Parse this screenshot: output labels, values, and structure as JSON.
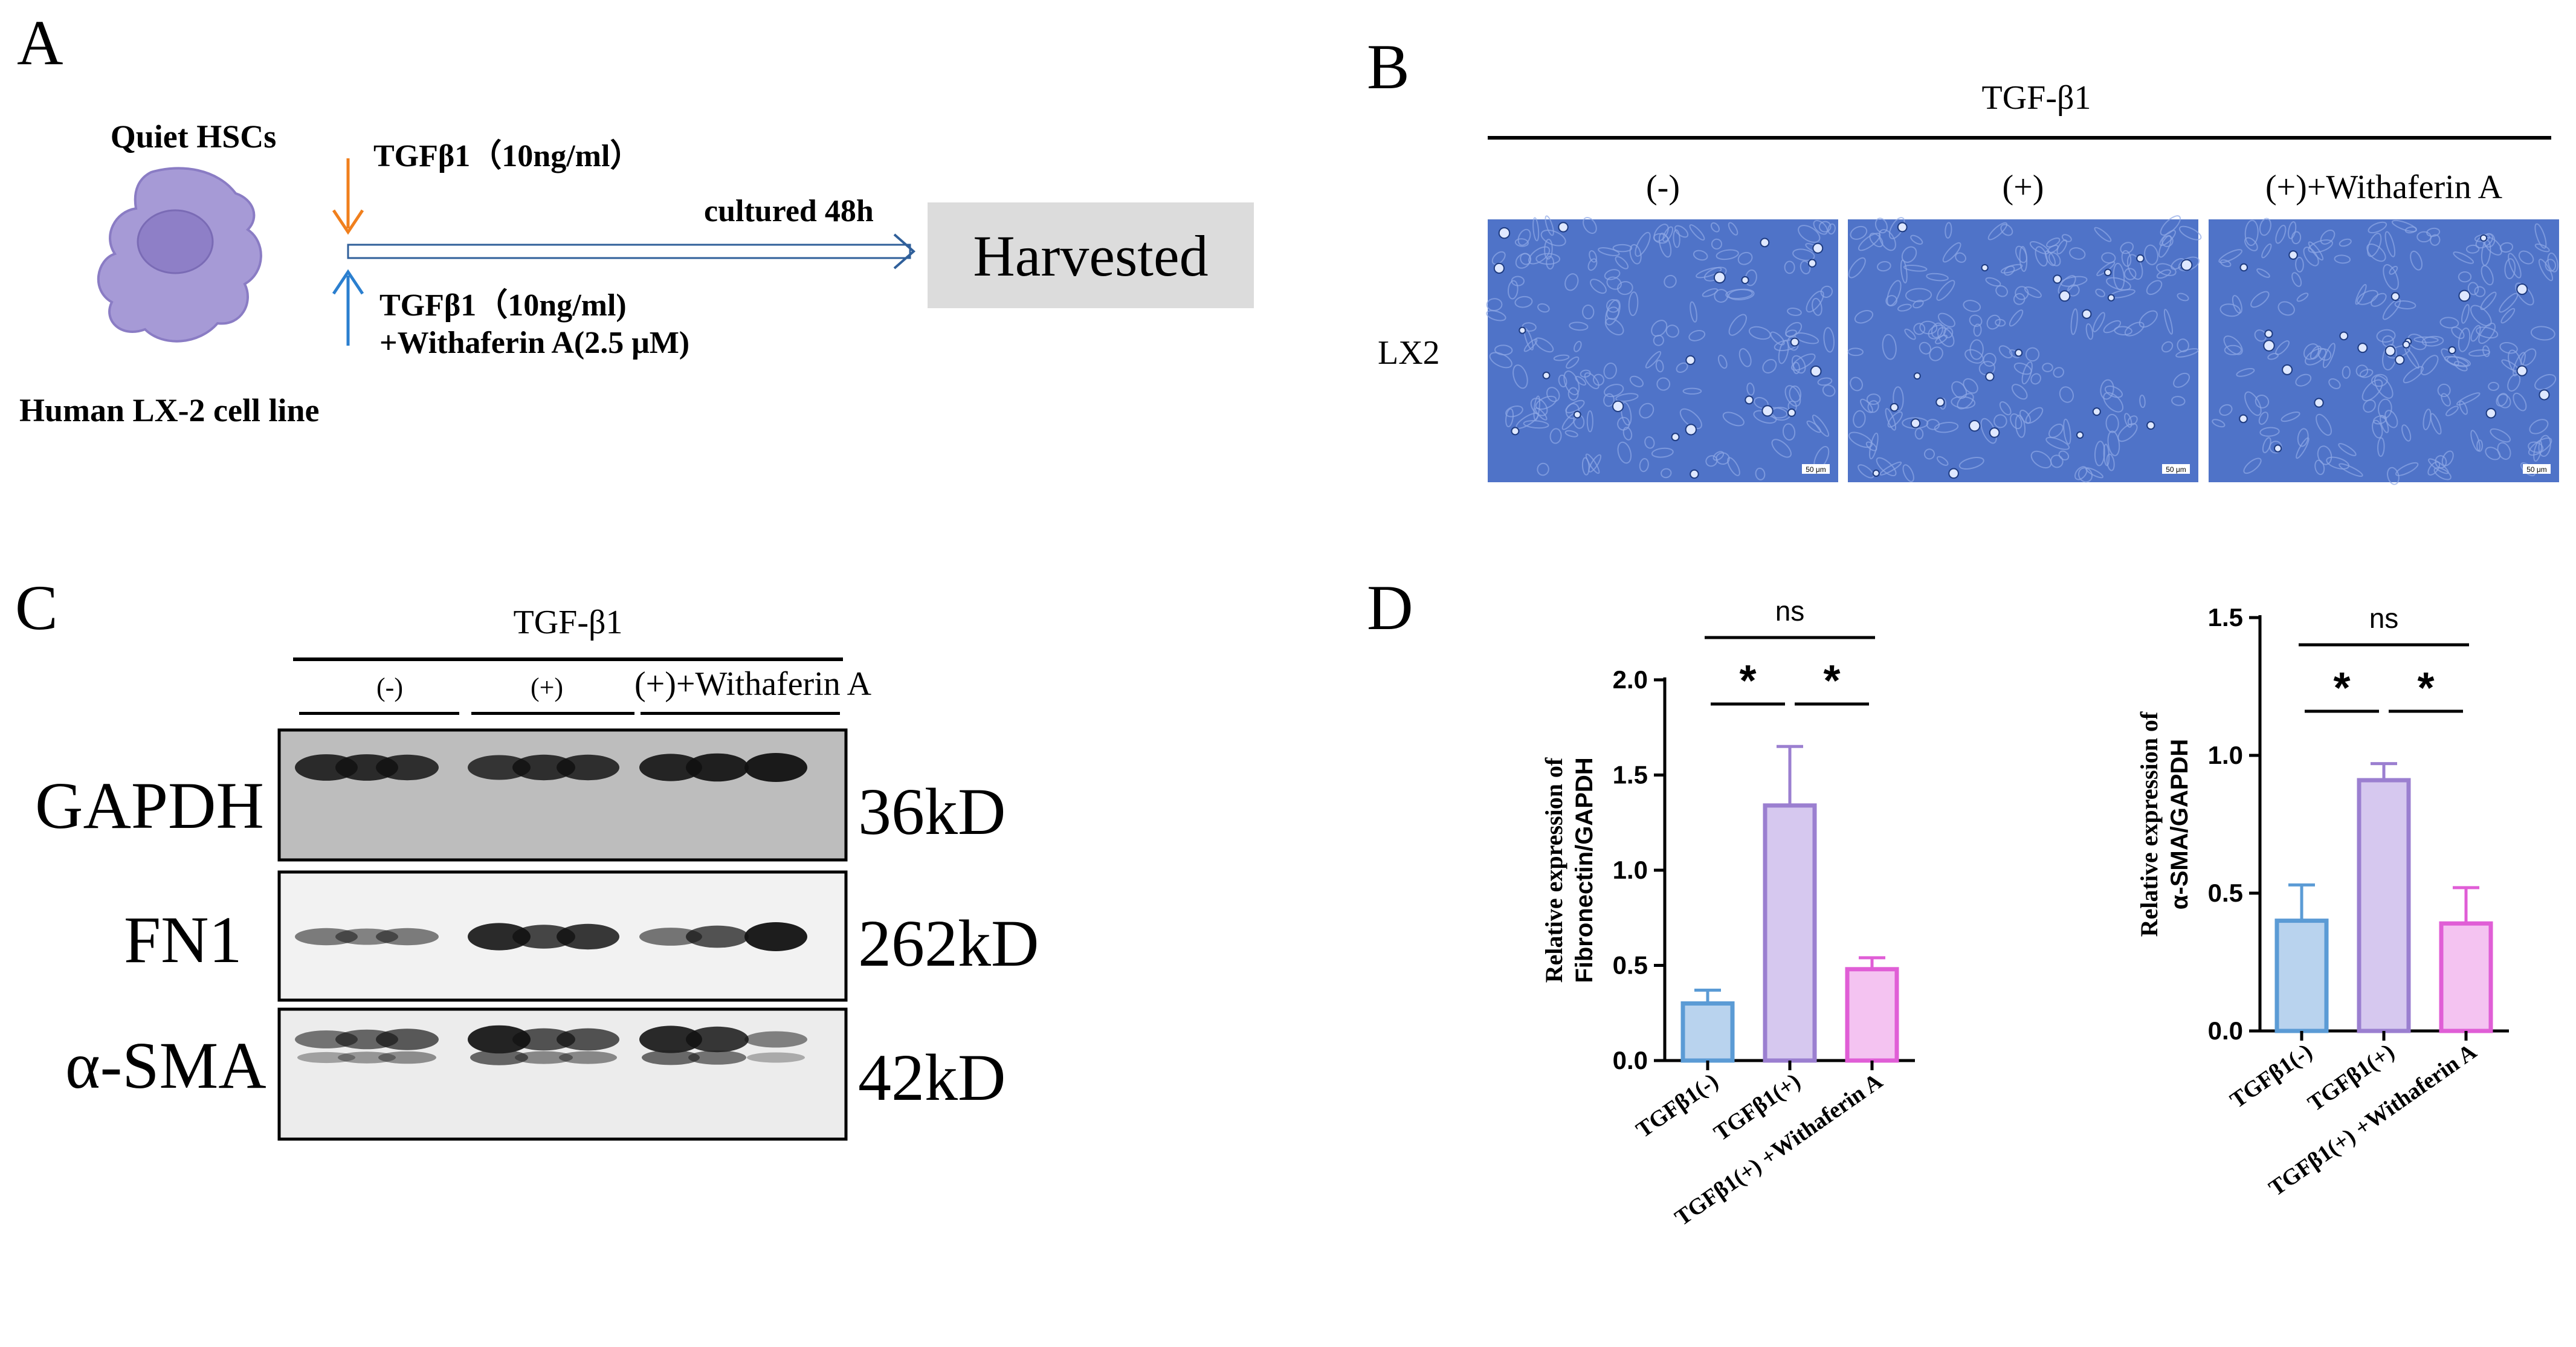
{
  "panels": {
    "A": {
      "letter": "A",
      "quiet_label": "Quiet HSCs",
      "cell_line_label": "Human LX-2 cell line",
      "treat1": "TGFβ1（10ng/ml）",
      "treat2_line1": "TGFβ1（10ng/ml)",
      "treat2_line2": "+Withaferin A(2.5 μM)",
      "culture_label": "cultured 48h",
      "harvested_label": "Harvested",
      "colors": {
        "arrow1": "#f07f1d",
        "arrow2": "#2b7fcf",
        "harvest_box": "#dcdcdc",
        "cell_body": "#a69ad6",
        "nucleus": "#8e7fc7"
      }
    },
    "B": {
      "letter": "B",
      "header": "TGF-β1",
      "conditions": [
        "(-)",
        "(+)",
        "(+)+Withaferin A"
      ],
      "row_label": "LX2",
      "scale_bar": "50 μm",
      "colors": {
        "micro_bg": "#4f73c8"
      }
    },
    "C": {
      "letter": "C",
      "header": "TGF-β1",
      "conditions": [
        "(-)",
        "(+)",
        "(+)+Withaferin A"
      ],
      "blots": [
        {
          "name": "GAPDH",
          "size": "36kD"
        },
        {
          "name": "FN1",
          "size": "262kD"
        },
        {
          "name": "α-SMA",
          "size": "42kD"
        }
      ]
    },
    "D": {
      "letter": "D"
    }
  },
  "chart_data": [
    {
      "type": "bar",
      "categories": [
        "TGFβ1(-)",
        "TGFβ1(+)",
        "TGFβ1(+) +Withaferin A"
      ],
      "values": [
        0.3,
        1.34,
        0.48
      ],
      "errors": [
        0.07,
        0.31,
        0.06
      ],
      "ylabel_line1": "Relative expression of",
      "ylabel_line2": "Fibronectin/GAPDH",
      "ylim": [
        0,
        2.0
      ],
      "yticks": [
        "0.0",
        "0.5",
        "1.0",
        "1.5",
        "2.0"
      ],
      "ytick_values": [
        0,
        0.5,
        1.0,
        1.5,
        2.0
      ],
      "significance": {
        "pair_1_2": "*",
        "pair_2_3": "*",
        "pair_1_3": "ns"
      },
      "colors": [
        "#5b9bd5",
        "#9b7fd0",
        "#e05ed6"
      ],
      "fills": [
        "#b9d3ee",
        "#d6c8ef",
        "#f4c3f1"
      ]
    },
    {
      "type": "bar",
      "categories": [
        "TGFβ1(-)",
        "TGFβ1(+)",
        "TGFβ1(+) +Withaferin A"
      ],
      "values": [
        0.4,
        0.91,
        0.39
      ],
      "errors": [
        0.13,
        0.06,
        0.13
      ],
      "ylabel_line1": "Relative expression of",
      "ylabel_line2": "α-SMA/GAPDH",
      "ylim": [
        0,
        1.5
      ],
      "yticks": [
        "0.0",
        "0.5",
        "1.0",
        "1.5"
      ],
      "ytick_values": [
        0,
        0.5,
        1.0,
        1.5
      ],
      "significance": {
        "pair_1_2": "*",
        "pair_2_3": "*",
        "pair_1_3": "ns"
      },
      "colors": [
        "#5b9bd5",
        "#9b7fd0",
        "#e05ed6"
      ],
      "fills": [
        "#b9d3ee",
        "#d6c8ef",
        "#f4c3f1"
      ]
    }
  ]
}
